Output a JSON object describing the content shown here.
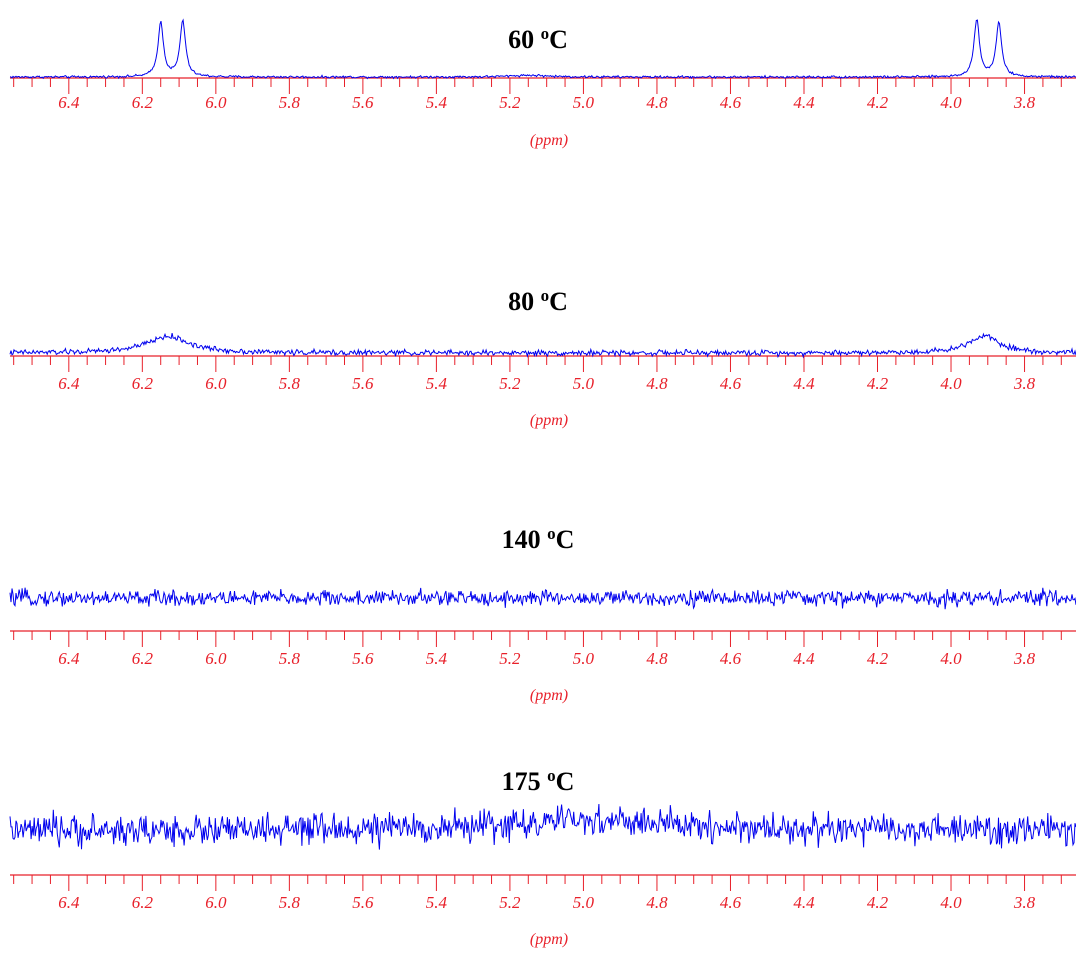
{
  "chart_data": [
    {
      "type": "line",
      "title": "60 ºC",
      "title_number": "60",
      "title_degree": "o",
      "title_unit": "C",
      "xlabel": "(ppm)",
      "ylabel": "",
      "xlim": [
        6.56,
        3.66
      ],
      "x_reversed": true,
      "xticks": [
        "6.4",
        "6.2",
        "6.0",
        "5.8",
        "5.6",
        "5.4",
        "5.2",
        "5.0",
        "4.8",
        "4.6",
        "4.4",
        "4.2",
        "4.0",
        "3.8"
      ],
      "series": [
        {
          "color": "#0000ee",
          "noise_level": 0.01,
          "peaks": [
            {
              "x": 6.15,
              "height": 0.95,
              "width": 0.009
            },
            {
              "x": 6.09,
              "height": 0.98,
              "width": 0.009
            },
            {
              "x": 3.93,
              "height": 1.0,
              "width": 0.009
            },
            {
              "x": 3.87,
              "height": 0.96,
              "width": 0.009
            },
            {
              "x": 5.15,
              "height": 0.03,
              "width": 0.06
            }
          ]
        }
      ]
    },
    {
      "type": "line",
      "title": "80 ºC",
      "title_number": "80",
      "title_degree": "o",
      "title_unit": "C",
      "xlabel": "(ppm)",
      "ylabel": "",
      "xlim": [
        6.56,
        3.66
      ],
      "x_reversed": true,
      "xticks": [
        "6.4",
        "6.2",
        "6.0",
        "5.8",
        "5.6",
        "5.4",
        "5.2",
        "5.0",
        "4.8",
        "4.6",
        "4.4",
        "4.2",
        "4.0",
        "3.8"
      ],
      "series": [
        {
          "color": "#0000ee",
          "noise_level": 0.025,
          "peaks": [
            {
              "x": 6.13,
              "height": 0.3,
              "width": 0.07
            },
            {
              "x": 3.91,
              "height": 0.32,
              "width": 0.05
            }
          ]
        }
      ]
    },
    {
      "type": "line",
      "title": "140 ºC",
      "title_number": "140",
      "title_degree": "o",
      "title_unit": "C",
      "xlabel": "(ppm)",
      "ylabel": "",
      "xlim": [
        6.56,
        3.66
      ],
      "x_reversed": true,
      "xticks": [
        "6.4",
        "6.2",
        "6.0",
        "5.8",
        "5.6",
        "5.4",
        "5.2",
        "5.0",
        "4.8",
        "4.6",
        "4.4",
        "4.2",
        "4.0",
        "3.8"
      ],
      "series": [
        {
          "color": "#0000ee",
          "noise_level": 0.3,
          "peaks": []
        }
      ]
    },
    {
      "type": "line",
      "title": "175 ºC",
      "title_number": "175",
      "title_degree": "o",
      "title_unit": "C",
      "xlabel": "(ppm)",
      "ylabel": "",
      "xlim": [
        6.56,
        3.66
      ],
      "x_reversed": true,
      "xticks": [
        "6.4",
        "6.2",
        "6.0",
        "5.8",
        "5.6",
        "5.4",
        "5.2",
        "5.0",
        "4.8",
        "4.6",
        "4.4",
        "4.2",
        "4.0",
        "3.8"
      ],
      "series": [
        {
          "color": "#0000ee",
          "noise_level": 0.45,
          "peaks": [
            {
              "x": 4.98,
              "height": 0.6,
              "width": 0.3
            }
          ]
        }
      ]
    }
  ],
  "colors": {
    "trace": "#0000ee",
    "axis": "#e8202a",
    "title": "#000000"
  }
}
